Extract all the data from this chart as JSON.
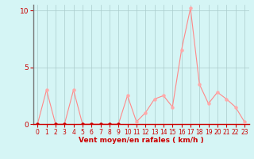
{
  "x": [
    0,
    1,
    2,
    3,
    4,
    5,
    6,
    7,
    8,
    9,
    10,
    11,
    12,
    13,
    14,
    15,
    16,
    17,
    18,
    19,
    20,
    21,
    22,
    23
  ],
  "y": [
    0,
    3,
    0,
    0,
    3,
    0,
    0,
    0,
    0,
    0,
    2.5,
    0.2,
    1.0,
    2.2,
    2.5,
    1.5,
    6.5,
    10.2,
    3.5,
    1.8,
    2.8,
    2.2,
    1.5,
    0.2
  ],
  "line_color": "#ff8888",
  "marker_color_dark": "#cc0000",
  "marker_color_light": "#ffaaaa",
  "bg_color": "#d5f5f5",
  "grid_color": "#aacccc",
  "tick_color": "#cc0000",
  "xlabel": "Vent moyen/en rafales ( km/h )",
  "ylim": [
    0,
    10.5
  ],
  "xlim": [
    -0.5,
    23.5
  ],
  "yticks": [
    0,
    5,
    10
  ],
  "xticks": [
    0,
    1,
    2,
    3,
    4,
    5,
    6,
    7,
    8,
    9,
    10,
    11,
    12,
    13,
    14,
    15,
    16,
    17,
    18,
    19,
    20,
    21,
    22,
    23
  ]
}
